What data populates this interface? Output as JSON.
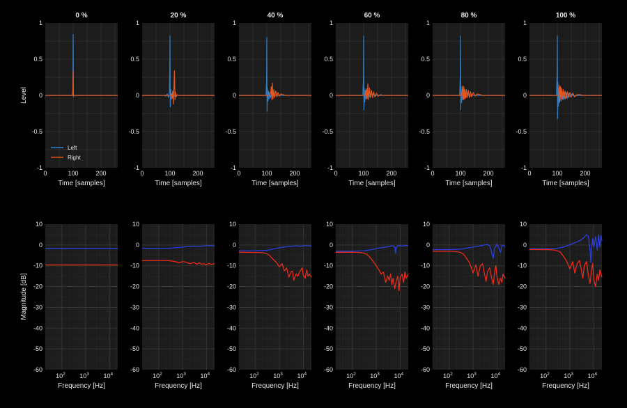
{
  "figure": {
    "background": "#000000",
    "axes_background": "#1c1c1c",
    "grid_color": "#3a3a3a",
    "text_color": "#e6e6e6",
    "grid": true
  },
  "impulse": {
    "ylabel": "Level",
    "xlabel": "Time [samples]",
    "xlim": [
      0,
      260
    ],
    "ylim": [
      -1,
      1
    ],
    "xticks": [
      0,
      100,
      200
    ],
    "yticks": [
      -1,
      -0.5,
      0,
      0.5,
      1
    ],
    "ytick_labels": [
      "-1",
      "-0.5",
      "0",
      "0.5",
      "1"
    ],
    "legend": {
      "location": "lower-left",
      "left_label": "Left",
      "right_label": "Right"
    },
    "colors": {
      "left": "#2f7fc8",
      "right": "#e8561c"
    }
  },
  "magnitude": {
    "ylabel": "Magnitude [dB]",
    "xlabel": "Frequency [Hz]",
    "xscale": "log",
    "xlim": [
      20,
      22000
    ],
    "ylim": [
      -60,
      10
    ],
    "yticks": [
      -60,
      -50,
      -40,
      -30,
      -20,
      -10,
      0,
      10
    ],
    "xticks": [
      100,
      1000,
      10000
    ],
    "xtick_base": "10",
    "xtick_exponents": [
      "2",
      "3",
      "4"
    ],
    "colors": {
      "left": "#2a3fe0",
      "right": "#ee2a1a"
    }
  },
  "panel_titles": [
    "0 %",
    "20 %",
    "40 %",
    "60 %",
    "80 %",
    "100 %"
  ],
  "chart_data": [
    {
      "type": "line",
      "title": "0 %",
      "row": "impulse",
      "series": [
        {
          "name": "Left",
          "x": [
            0,
            98,
            99,
            100,
            101,
            102,
            260
          ],
          "y": [
            0,
            0,
            0.12,
            0.84,
            -0.02,
            0,
            0
          ]
        },
        {
          "name": "Right",
          "x": [
            0,
            98,
            99,
            100,
            101,
            102,
            260
          ],
          "y": [
            0,
            0,
            0.05,
            0.33,
            -0.01,
            0,
            0
          ]
        }
      ]
    },
    {
      "type": "line",
      "title": "20 %",
      "row": "impulse",
      "series": [
        {
          "name": "Left",
          "x": [
            0,
            80,
            85,
            90,
            95,
            98,
            99,
            100,
            101,
            103,
            105,
            108,
            112,
            118,
            125,
            140,
            260
          ],
          "y": [
            0,
            0,
            -0.01,
            0.02,
            -0.03,
            0.05,
            0.3,
            0.82,
            -0.16,
            0.08,
            -0.05,
            0.03,
            -0.02,
            0.01,
            0,
            0,
            0
          ]
        },
        {
          "name": "Right",
          "x": [
            0,
            100,
            105,
            108,
            110,
            112,
            114,
            116,
            118,
            120,
            122,
            125,
            130,
            260
          ],
          "y": [
            0,
            0,
            0.02,
            -0.04,
            0.06,
            -0.12,
            0.1,
            0.34,
            -0.06,
            0.05,
            -0.02,
            0.01,
            0,
            0
          ]
        }
      ]
    },
    {
      "type": "line",
      "title": "40 %",
      "row": "impulse",
      "series": [
        {
          "name": "Left",
          "x": [
            0,
            97,
            99,
            100,
            101,
            102,
            104,
            106,
            108,
            110,
            113,
            116,
            120,
            126,
            135,
            260
          ],
          "y": [
            0,
            0,
            0.2,
            0.8,
            -0.22,
            0.1,
            -0.08,
            0.06,
            -0.05,
            0.04,
            -0.03,
            0.02,
            -0.02,
            0.01,
            0,
            0
          ]
        },
        {
          "name": "Right",
          "x": [
            0,
            110,
            114,
            116,
            118,
            120,
            122,
            125,
            128,
            132,
            136,
            140,
            145,
            150,
            158,
            170,
            260
          ],
          "y": [
            0,
            0,
            0.04,
            0.12,
            -0.06,
            0.17,
            -0.05,
            0.08,
            -0.03,
            0.06,
            -0.02,
            0.04,
            -0.01,
            0.02,
            0.01,
            0,
            0
          ]
        }
      ]
    },
    {
      "type": "line",
      "title": "60 %",
      "row": "impulse",
      "series": [
        {
          "name": "Left",
          "x": [
            0,
            97,
            99,
            100,
            101,
            102,
            104,
            106,
            108,
            110,
            113,
            116,
            120,
            126,
            135,
            145,
            260
          ],
          "y": [
            0,
            0,
            0.2,
            0.82,
            -0.2,
            0.1,
            -0.09,
            0.07,
            -0.05,
            0.05,
            -0.04,
            0.03,
            -0.02,
            0.02,
            0.01,
            0,
            0
          ]
        },
        {
          "name": "Right",
          "x": [
            0,
            105,
            108,
            110,
            112,
            115,
            118,
            121,
            124,
            128,
            132,
            136,
            140,
            146,
            152,
            160,
            170,
            260
          ],
          "y": [
            0,
            0,
            0.05,
            0.09,
            -0.05,
            0.16,
            -0.06,
            0.1,
            -0.03,
            0.07,
            -0.03,
            0.05,
            -0.02,
            0.03,
            -0.01,
            0.01,
            0,
            0
          ]
        }
      ]
    },
    {
      "type": "line",
      "title": "80 %",
      "row": "impulse",
      "series": [
        {
          "name": "Left",
          "x": [
            0,
            97,
            99,
            100,
            101,
            102,
            104,
            106,
            108,
            110,
            113,
            116,
            120,
            126,
            132,
            140,
            150,
            260
          ],
          "y": [
            0,
            0,
            0.25,
            0.82,
            -0.2,
            0.12,
            -0.1,
            0.08,
            -0.06,
            0.06,
            -0.05,
            0.04,
            -0.03,
            0.03,
            -0.02,
            0.01,
            0,
            0
          ]
        },
        {
          "name": "Right",
          "x": [
            0,
            104,
            106,
            108,
            110,
            112,
            114,
            116,
            118,
            121,
            124,
            128,
            132,
            136,
            140,
            146,
            152,
            160,
            170,
            180,
            260
          ],
          "y": [
            0,
            0,
            0.06,
            0.13,
            -0.06,
            0.12,
            -0.05,
            0.08,
            -0.04,
            0.08,
            -0.03,
            0.07,
            -0.03,
            0.05,
            -0.02,
            0.04,
            -0.01,
            0.02,
            0.01,
            0,
            0
          ]
        }
      ]
    },
    {
      "type": "line",
      "title": "100 %",
      "row": "impulse",
      "series": [
        {
          "name": "Left",
          "x": [
            0,
            97,
            99,
            100,
            101,
            102,
            104,
            106,
            108,
            110,
            113,
            116,
            120,
            124,
            128,
            132,
            136,
            140,
            146,
            152,
            160,
            175,
            260
          ],
          "y": [
            0,
            0,
            0.3,
            0.82,
            -0.32,
            0.18,
            -0.15,
            0.12,
            -0.1,
            0.09,
            -0.08,
            0.07,
            -0.06,
            0.05,
            -0.05,
            0.04,
            -0.04,
            0.03,
            -0.02,
            0.02,
            -0.01,
            0,
            0
          ]
        },
        {
          "name": "Right",
          "x": [
            0,
            103,
            105,
            107,
            109,
            111,
            113,
            115,
            118,
            121,
            124,
            128,
            132,
            136,
            140,
            145,
            150,
            156,
            162,
            170,
            180,
            195,
            260
          ],
          "y": [
            0,
            0,
            0.05,
            0.14,
            -0.08,
            0.12,
            -0.06,
            0.1,
            -0.05,
            0.08,
            -0.05,
            0.06,
            -0.04,
            0.05,
            -0.03,
            0.04,
            -0.02,
            0.03,
            -0.02,
            0.01,
            0.01,
            0,
            0
          ]
        }
      ]
    },
    {
      "type": "line",
      "title": "0 %",
      "row": "magnitude",
      "series": [
        {
          "name": "Left",
          "x": [
            20,
            100,
            1000,
            5000,
            10000,
            22000
          ],
          "y": [
            -1.7,
            -1.7,
            -1.7,
            -1.7,
            -1.7,
            -1.7
          ]
        },
        {
          "name": "Right",
          "x": [
            20,
            100,
            1000,
            5000,
            10000,
            22000
          ],
          "y": [
            -9.6,
            -9.6,
            -9.6,
            -9.6,
            -9.6,
            -9.6
          ]
        }
      ]
    },
    {
      "type": "line",
      "title": "20 %",
      "row": "magnitude",
      "series": [
        {
          "name": "Left",
          "x": [
            20,
            100,
            300,
            700,
            1500,
            3000,
            6000,
            12000,
            22000
          ],
          "y": [
            -1.6,
            -1.6,
            -1.5,
            -1.2,
            -0.8,
            -0.6,
            -0.6,
            -0.3,
            -0.5
          ]
        },
        {
          "name": "Right",
          "x": [
            20,
            100,
            200,
            300,
            500,
            700,
            1000,
            1500,
            2000,
            3000,
            4000,
            5000,
            6000,
            8000,
            10000,
            13000,
            16000,
            22000
          ],
          "y": [
            -7.5,
            -7.5,
            -7.5,
            -7.6,
            -8.0,
            -8.6,
            -8.0,
            -8.3,
            -9.0,
            -8.4,
            -9.3,
            -8.5,
            -9.2,
            -9.0,
            -9.6,
            -8.8,
            -9.4,
            -9.0
          ]
        }
      ]
    },
    {
      "type": "line",
      "title": "40 %",
      "row": "magnitude",
      "series": [
        {
          "name": "Left",
          "x": [
            20,
            100,
            300,
            500,
            800,
            1200,
            2000,
            3000,
            5000,
            8000,
            12000,
            22000
          ],
          "y": [
            -2.8,
            -2.8,
            -2.6,
            -2.0,
            -1.6,
            -1.2,
            -0.8,
            -0.6,
            -0.4,
            -0.6,
            -0.3,
            -0.5
          ]
        },
        {
          "name": "Right",
          "x": [
            20,
            100,
            200,
            300,
            400,
            500,
            700,
            1000,
            1300,
            1600,
            2000,
            2500,
            3000,
            3500,
            4000,
            5000,
            6000,
            7000,
            8000,
            9000,
            10000,
            12000,
            14000,
            16000,
            18000,
            22000
          ],
          "y": [
            -3.5,
            -3.6,
            -3.7,
            -4.2,
            -5.2,
            -6.5,
            -8.0,
            -10.5,
            -9.0,
            -12.5,
            -11.0,
            -15.5,
            -13.0,
            -12.5,
            -17.0,
            -14.0,
            -15.0,
            -13.0,
            -12.0,
            -11.0,
            -14.5,
            -16.0,
            -12.0,
            -15.0,
            -14.0,
            -15.5
          ]
        }
      ]
    },
    {
      "type": "line",
      "title": "60 %",
      "row": "magnitude",
      "series": [
        {
          "name": "Left",
          "x": [
            20,
            100,
            300,
            500,
            800,
            1200,
            2000,
            3000,
            4000,
            5000,
            6000,
            6500,
            7000,
            8000,
            10000,
            12000,
            15000,
            22000
          ],
          "y": [
            -3.0,
            -3.0,
            -2.8,
            -2.4,
            -2.0,
            -1.5,
            -1.2,
            -0.8,
            -0.5,
            -0.5,
            -1.0,
            -4.0,
            -1.0,
            -0.4,
            -0.3,
            -0.6,
            -0.3,
            -0.4
          ]
        },
        {
          "name": "Right",
          "x": [
            20,
            100,
            200,
            300,
            400,
            500,
            700,
            1000,
            1300,
            1600,
            2000,
            2500,
            3000,
            3500,
            4000,
            4500,
            5000,
            6000,
            7000,
            8000,
            9000,
            10000,
            12000,
            14000,
            16000,
            18000,
            22000
          ],
          "y": [
            -3.5,
            -3.5,
            -3.6,
            -3.9,
            -4.5,
            -5.5,
            -7.5,
            -10.0,
            -12.0,
            -14.0,
            -13.0,
            -18.0,
            -15.0,
            -17.0,
            -14.0,
            -19.0,
            -16.0,
            -21.0,
            -17.0,
            -15.0,
            -22.0,
            -16.0,
            -14.0,
            -18.0,
            -13.0,
            -16.0,
            -14.0
          ]
        }
      ]
    },
    {
      "type": "line",
      "title": "80 %",
      "row": "magnitude",
      "series": [
        {
          "name": "Left",
          "x": [
            20,
            100,
            300,
            500,
            800,
            1200,
            2000,
            3000,
            4000,
            5000,
            6000,
            7000,
            8000,
            9000,
            10000,
            12000,
            14000,
            16000,
            18000,
            22000
          ],
          "y": [
            -2.2,
            -2.2,
            -2.0,
            -1.6,
            -1.2,
            -0.8,
            -0.4,
            0.0,
            0.3,
            -0.5,
            -3.5,
            -6.5,
            -1.5,
            -0.5,
            0.5,
            -1.5,
            -3.5,
            -0.5,
            0.0,
            -1.0
          ]
        },
        {
          "name": "Right",
          "x": [
            20,
            100,
            200,
            300,
            400,
            500,
            700,
            1000,
            1300,
            1600,
            2000,
            2500,
            3000,
            3500,
            4000,
            5000,
            6000,
            7000,
            8000,
            9000,
            10000,
            12000,
            14000,
            16000,
            18000,
            22000
          ],
          "y": [
            -3.0,
            -3.0,
            -3.2,
            -3.6,
            -4.5,
            -6.0,
            -8.5,
            -13.5,
            -9.5,
            -15.0,
            -10.0,
            -9.0,
            -14.0,
            -17.5,
            -13.0,
            -11.0,
            -16.0,
            -19.0,
            -13.0,
            -10.0,
            -15.0,
            -19.0,
            -16.0,
            -18.0,
            -14.0,
            -16.0
          ]
        }
      ]
    },
    {
      "type": "line",
      "title": "100 %",
      "row": "magnitude",
      "series": [
        {
          "name": "Left",
          "x": [
            20,
            100,
            300,
            500,
            800,
            1200,
            2000,
            3000,
            4000,
            5000,
            6000,
            7000,
            7500,
            8000,
            9000,
            10000,
            12000,
            14000,
            16000,
            18000,
            20000,
            22000
          ],
          "y": [
            -1.8,
            -1.8,
            -1.6,
            -1.0,
            -0.3,
            0.5,
            1.5,
            2.5,
            3.8,
            5.0,
            4.0,
            -3.0,
            -8.5,
            -2.0,
            3.0,
            -1.0,
            4.0,
            -2.5,
            5.0,
            -1.0,
            4.5,
            2.0
          ]
        },
        {
          "name": "Right",
          "x": [
            20,
            100,
            200,
            300,
            400,
            500,
            700,
            1000,
            1300,
            1600,
            2000,
            2500,
            3000,
            3500,
            4000,
            5000,
            6000,
            7000,
            8000,
            9000,
            10000,
            12000,
            14000,
            16000,
            18000,
            22000
          ],
          "y": [
            -2.2,
            -2.2,
            -2.4,
            -2.8,
            -3.5,
            -5.0,
            -7.5,
            -11.5,
            -8.0,
            -13.5,
            -9.0,
            -7.5,
            -12.0,
            -16.0,
            -10.0,
            -8.0,
            -15.0,
            -18.5,
            -12.0,
            -9.0,
            -17.0,
            -20.0,
            -14.0,
            -17.0,
            -12.0,
            -15.5
          ]
        }
      ]
    }
  ]
}
